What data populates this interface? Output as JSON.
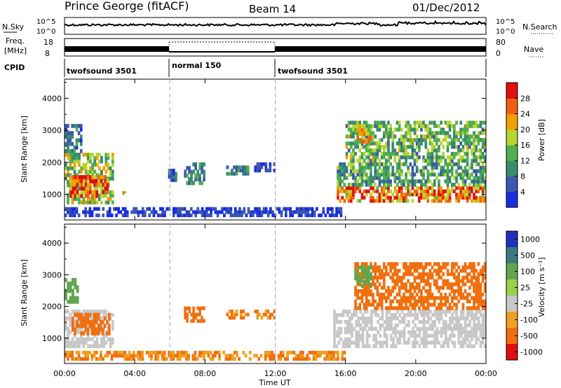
{
  "header": {
    "station": "Prince George (fitACF)",
    "beam": "Beam 14",
    "date": "01/Dec/2012"
  },
  "small_panels": {
    "nsky_label": "N.Sky",
    "nsky_ticks": [
      "10^5",
      "10^0"
    ],
    "nsearch_label": "N.Search",
    "freq_label_1": "Freq.",
    "freq_label_2": "[MHz]",
    "freq_ticks": [
      "18",
      "8"
    ],
    "nave_label": "Nave",
    "nave_ticks": [
      "80",
      "0"
    ],
    "cpid_label": "CPID",
    "cpid_segments": [
      "twofsound 3501",
      "normal 150",
      "twofsound 3501"
    ]
  },
  "chart_data": [
    {
      "type": "heatmap",
      "panel": "power",
      "ylabel": "Slant Range [km]",
      "xlabel": "",
      "x_ticks": [
        "00:00",
        "04:00",
        "08:00",
        "12:00",
        "16:00",
        "20:00",
        "00:00"
      ],
      "y_ticks": [
        "1000",
        "2000",
        "3000",
        "4000"
      ],
      "ylim": [
        200,
        4600
      ],
      "colorbar_label": "Power [dB]",
      "colorbar_ticks": [
        "4",
        "8",
        "12",
        "16",
        "20",
        "24",
        "28"
      ],
      "colors": [
        "#1a2ee0",
        "#3d57b0",
        "#3a8a6e",
        "#4fb04f",
        "#b8d430",
        "#f0a000",
        "#f06010",
        "#e01010"
      ],
      "regions": [
        {
          "t": [
            0.0,
            2.8
          ],
          "r": [
            700,
            2300
          ],
          "value": 16
        },
        {
          "t": [
            0.3,
            2.5
          ],
          "r": [
            900,
            1600
          ],
          "value": 26
        },
        {
          "t": [
            0.0,
            1.0
          ],
          "r": [
            2300,
            3200
          ],
          "value": 8
        },
        {
          "t": [
            3.3,
            3.5
          ],
          "r": [
            1000,
            1100
          ],
          "value": 20
        },
        {
          "t": [
            5.9,
            6.4
          ],
          "r": [
            1400,
            1900
          ],
          "value": 6
        },
        {
          "t": [
            6.8,
            8.0
          ],
          "r": [
            1300,
            2000
          ],
          "value": 10
        },
        {
          "t": [
            9.2,
            10.5
          ],
          "r": [
            1600,
            1900
          ],
          "value": 10
        },
        {
          "t": [
            10.8,
            12.0
          ],
          "r": [
            1700,
            2000
          ],
          "value": 4
        },
        {
          "t": [
            0.0,
            15.8
          ],
          "r": [
            300,
            600
          ],
          "value": 4
        },
        {
          "t": [
            15.5,
            24.0
          ],
          "r": [
            750,
            1250
          ],
          "value": 24
        },
        {
          "t": [
            15.5,
            24.0
          ],
          "r": [
            1250,
            2000
          ],
          "value": 12
        },
        {
          "t": [
            16.0,
            24.0
          ],
          "r": [
            2000,
            3300
          ],
          "value": 14
        },
        {
          "t": [
            16.5,
            17.5
          ],
          "r": [
            2600,
            3200
          ],
          "value": 20
        }
      ]
    },
    {
      "type": "heatmap",
      "panel": "velocity",
      "ylabel": "Slant Range [km]",
      "xlabel": "Time UT",
      "x_ticks": [
        "00:00",
        "04:00",
        "08:00",
        "12:00",
        "16:00",
        "20:00",
        "00:00"
      ],
      "y_ticks": [
        "1000",
        "2000",
        "3000",
        "4000"
      ],
      "ylim": [
        200,
        4600
      ],
      "colorbar_label": "Velocity [m s⁻¹]",
      "colorbar_ticks": [
        "1000",
        "500",
        "100",
        "25",
        "-25",
        "-100",
        "-500",
        "-1000"
      ],
      "colors": [
        "#2030c0",
        "#3a7a80",
        "#60a850",
        "#9ad04a",
        "#c8c8c8",
        "#f0a020",
        "#f07010",
        "#e01010"
      ],
      "regions": [
        {
          "t": [
            0.0,
            2.8
          ],
          "r": [
            700,
            1900
          ],
          "value": 0
        },
        {
          "t": [
            0.4,
            2.6
          ],
          "r": [
            1100,
            1800
          ],
          "value": -150
        },
        {
          "t": [
            0.0,
            0.8
          ],
          "r": [
            2100,
            2900
          ],
          "value": 150
        },
        {
          "t": [
            6.8,
            8.0
          ],
          "r": [
            1500,
            2000
          ],
          "value": -150
        },
        {
          "t": [
            9.2,
            10.5
          ],
          "r": [
            1600,
            1900
          ],
          "value": -100
        },
        {
          "t": [
            10.8,
            12.0
          ],
          "r": [
            1600,
            1900
          ],
          "value": -100
        },
        {
          "t": [
            0.0,
            16.0
          ],
          "r": [
            300,
            600
          ],
          "value": -100
        },
        {
          "t": [
            15.3,
            24.0
          ],
          "r": [
            700,
            1900
          ],
          "value": 0
        },
        {
          "t": [
            16.5,
            24.0
          ],
          "r": [
            1900,
            3400
          ],
          "value": -300
        },
        {
          "t": [
            16.5,
            17.5
          ],
          "r": [
            2600,
            3300
          ],
          "value": 150
        }
      ]
    }
  ]
}
